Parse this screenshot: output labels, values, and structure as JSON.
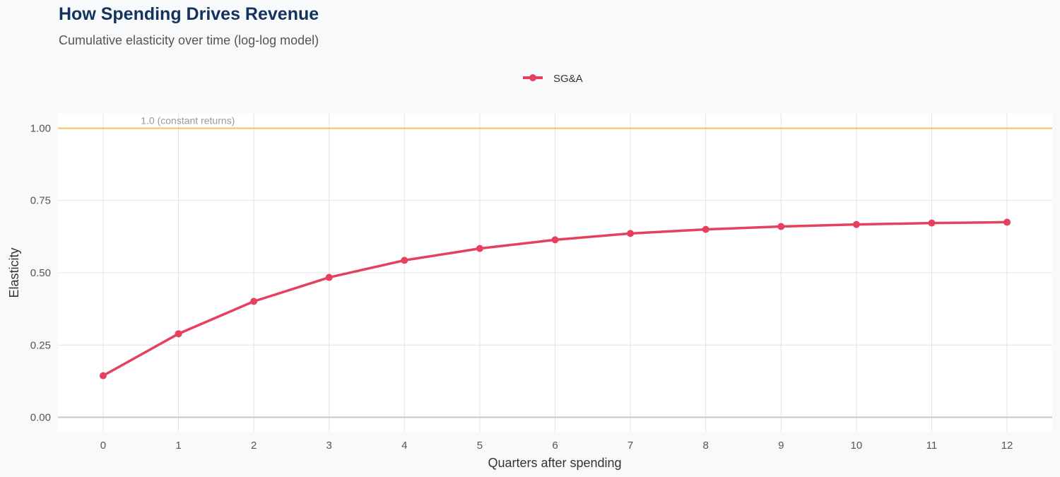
{
  "title": "How Spending Drives Revenue",
  "subtitle": "Cumulative elasticity over time (log-log model)",
  "chart_data": {
    "type": "line",
    "title": "How Spending Drives Revenue",
    "subtitle": "Cumulative elasticity over time (log-log model)",
    "xlabel": "Quarters after spending",
    "ylabel": "Elasticity",
    "x": [
      0,
      1,
      2,
      3,
      4,
      5,
      6,
      7,
      8,
      9,
      10,
      11,
      12
    ],
    "xticks": [
      "0",
      "1",
      "2",
      "3",
      "4",
      "5",
      "6",
      "7",
      "8",
      "9",
      "10",
      "11",
      "12"
    ],
    "yticks": [
      "0.00",
      "0.25",
      "0.50",
      "0.75",
      "1.00"
    ],
    "xlim": [
      -0.6,
      12.6
    ],
    "ylim": [
      -0.05,
      1.05
    ],
    "grid": true,
    "legend_position": "top",
    "series": [
      {
        "name": "SG&A",
        "color": "#e5405e",
        "values": [
          0.144,
          0.289,
          0.401,
          0.484,
          0.543,
          0.584,
          0.614,
          0.636,
          0.65,
          0.66,
          0.667,
          0.672,
          0.675
        ]
      }
    ],
    "reference_line": {
      "y": 1.0,
      "label": "1.0 (constant returns)",
      "color": "#f2c25c"
    }
  }
}
